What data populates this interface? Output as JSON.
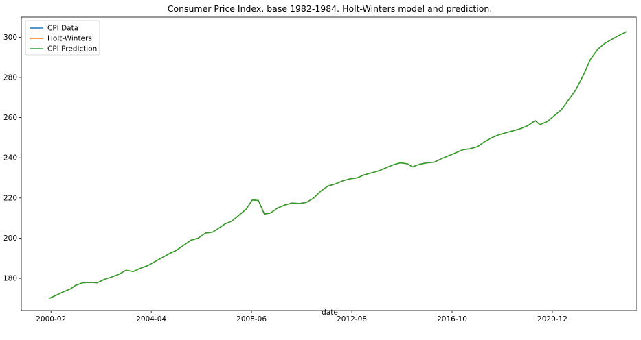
{
  "chart_data": {
    "type": "line",
    "title": "Consumer Price Index, base 1982-1984. Holt-Winters model and prediction.",
    "xlabel": "date",
    "ylabel": "",
    "x_ticks": [
      "2000-02",
      "2004-04",
      "2008-06",
      "2012-08",
      "2016-10",
      "2020-12"
    ],
    "y_ticks": [
      180,
      200,
      220,
      240,
      260,
      280,
      300
    ],
    "xlim": [
      1998.85,
      2024.4
    ],
    "ylim": [
      164.0,
      310.0
    ],
    "grid": false,
    "legend_position": "top-left",
    "x": [
      2000.0,
      2000.3,
      2000.6,
      2000.9,
      2001.1,
      2001.4,
      2001.7,
      2002.0,
      2002.3,
      2002.6,
      2002.9,
      2003.2,
      2003.5,
      2003.8,
      2004.1,
      2004.4,
      2004.7,
      2005.0,
      2005.3,
      2005.6,
      2005.9,
      2006.2,
      2006.5,
      2006.8,
      2007.0,
      2007.3,
      2007.6,
      2007.9,
      2008.2,
      2008.45,
      2008.7,
      2008.95,
      2009.2,
      2009.5,
      2009.8,
      2010.1,
      2010.4,
      2010.7,
      2011.0,
      2011.3,
      2011.6,
      2011.9,
      2012.2,
      2012.5,
      2012.8,
      2013.1,
      2013.4,
      2013.7,
      2014.0,
      2014.3,
      2014.6,
      2014.9,
      2015.1,
      2015.4,
      2015.7,
      2016.0,
      2016.3,
      2016.6,
      2016.9,
      2017.2,
      2017.5,
      2017.8,
      2018.1,
      2018.4,
      2018.7,
      2019.0,
      2019.3,
      2019.6,
      2019.9,
      2020.2,
      2020.4,
      2020.7,
      2021.0,
      2021.3,
      2021.6,
      2021.9,
      2022.2,
      2022.5,
      2022.8,
      2023.1,
      2023.4,
      2023.7,
      2024.0
    ],
    "series": [
      {
        "name": "CPI Data",
        "color": "#1f77b4",
        "values": [
          170.0,
          171.6,
          173.3,
          174.8,
          176.5,
          177.8,
          178.0,
          177.8,
          179.5,
          180.6,
          182.0,
          184.0,
          183.4,
          185.0,
          186.3,
          188.3,
          190.3,
          192.3,
          194.0,
          196.5,
          199.0,
          200.0,
          202.5,
          203.0,
          204.5,
          207.0,
          208.5,
          211.5,
          214.5,
          219.0,
          218.8,
          212.0,
          212.5,
          215.0,
          216.5,
          217.5,
          217.2,
          217.8,
          220.0,
          223.5,
          226.0,
          227.0,
          228.5,
          229.5,
          230.0,
          231.5,
          232.5,
          233.5,
          235.0,
          236.5,
          237.5,
          237.0,
          235.5,
          236.8,
          237.5,
          237.8,
          239.5,
          241.0,
          242.5,
          244.0,
          244.5,
          245.5,
          248.0,
          250.0,
          251.5,
          252.5,
          253.5,
          254.5,
          256.0,
          258.5,
          256.5,
          258.0,
          261.0,
          264.0,
          269.0,
          274.0,
          281.0,
          289.0,
          294.0,
          297.0,
          299.0,
          301.0,
          302.8
        ]
      },
      {
        "name": "Holt-Winters",
        "color": "#ff7f0e",
        "values": [
          170.0,
          171.6,
          173.3,
          174.8,
          176.5,
          177.8,
          178.0,
          177.8,
          179.5,
          180.6,
          182.0,
          184.0,
          183.4,
          185.0,
          186.3,
          188.3,
          190.3,
          192.3,
          194.0,
          196.5,
          199.0,
          200.0,
          202.5,
          203.0,
          204.5,
          207.0,
          208.5,
          211.5,
          214.5,
          219.0,
          218.8,
          212.0,
          212.5,
          215.0,
          216.5,
          217.5,
          217.2,
          217.8,
          220.0,
          223.5,
          226.0,
          227.0,
          228.5,
          229.5,
          230.0,
          231.5,
          232.5,
          233.5,
          235.0,
          236.5,
          237.5,
          237.0,
          235.5,
          236.8,
          237.5,
          237.8,
          239.5,
          241.0,
          242.5,
          244.0,
          244.5,
          245.5,
          248.0,
          250.0,
          251.5,
          252.5,
          253.5,
          254.5,
          256.0,
          258.5,
          256.5,
          258.0,
          261.0,
          264.0,
          269.0,
          274.0,
          281.0,
          289.0,
          294.0,
          297.0,
          299.0,
          301.0,
          302.8
        ]
      },
      {
        "name": "CPI Prediction",
        "color": "#2ca02c",
        "values": [
          170.0,
          171.6,
          173.3,
          174.8,
          176.5,
          177.8,
          178.0,
          177.8,
          179.5,
          180.6,
          182.0,
          184.0,
          183.4,
          185.0,
          186.3,
          188.3,
          190.3,
          192.3,
          194.0,
          196.5,
          199.0,
          200.0,
          202.5,
          203.0,
          204.5,
          207.0,
          208.5,
          211.5,
          214.5,
          219.0,
          218.8,
          212.0,
          212.5,
          215.0,
          216.5,
          217.5,
          217.2,
          217.8,
          220.0,
          223.5,
          226.0,
          227.0,
          228.5,
          229.5,
          230.0,
          231.5,
          232.5,
          233.5,
          235.0,
          236.5,
          237.5,
          237.0,
          235.5,
          236.8,
          237.5,
          237.8,
          239.5,
          241.0,
          242.5,
          244.0,
          244.5,
          245.5,
          248.0,
          250.0,
          251.5,
          252.5,
          253.5,
          254.5,
          256.0,
          258.5,
          256.5,
          258.0,
          261.0,
          264.0,
          269.0,
          274.0,
          281.0,
          289.0,
          294.0,
          297.0,
          299.0,
          301.0,
          302.8
        ]
      }
    ]
  }
}
